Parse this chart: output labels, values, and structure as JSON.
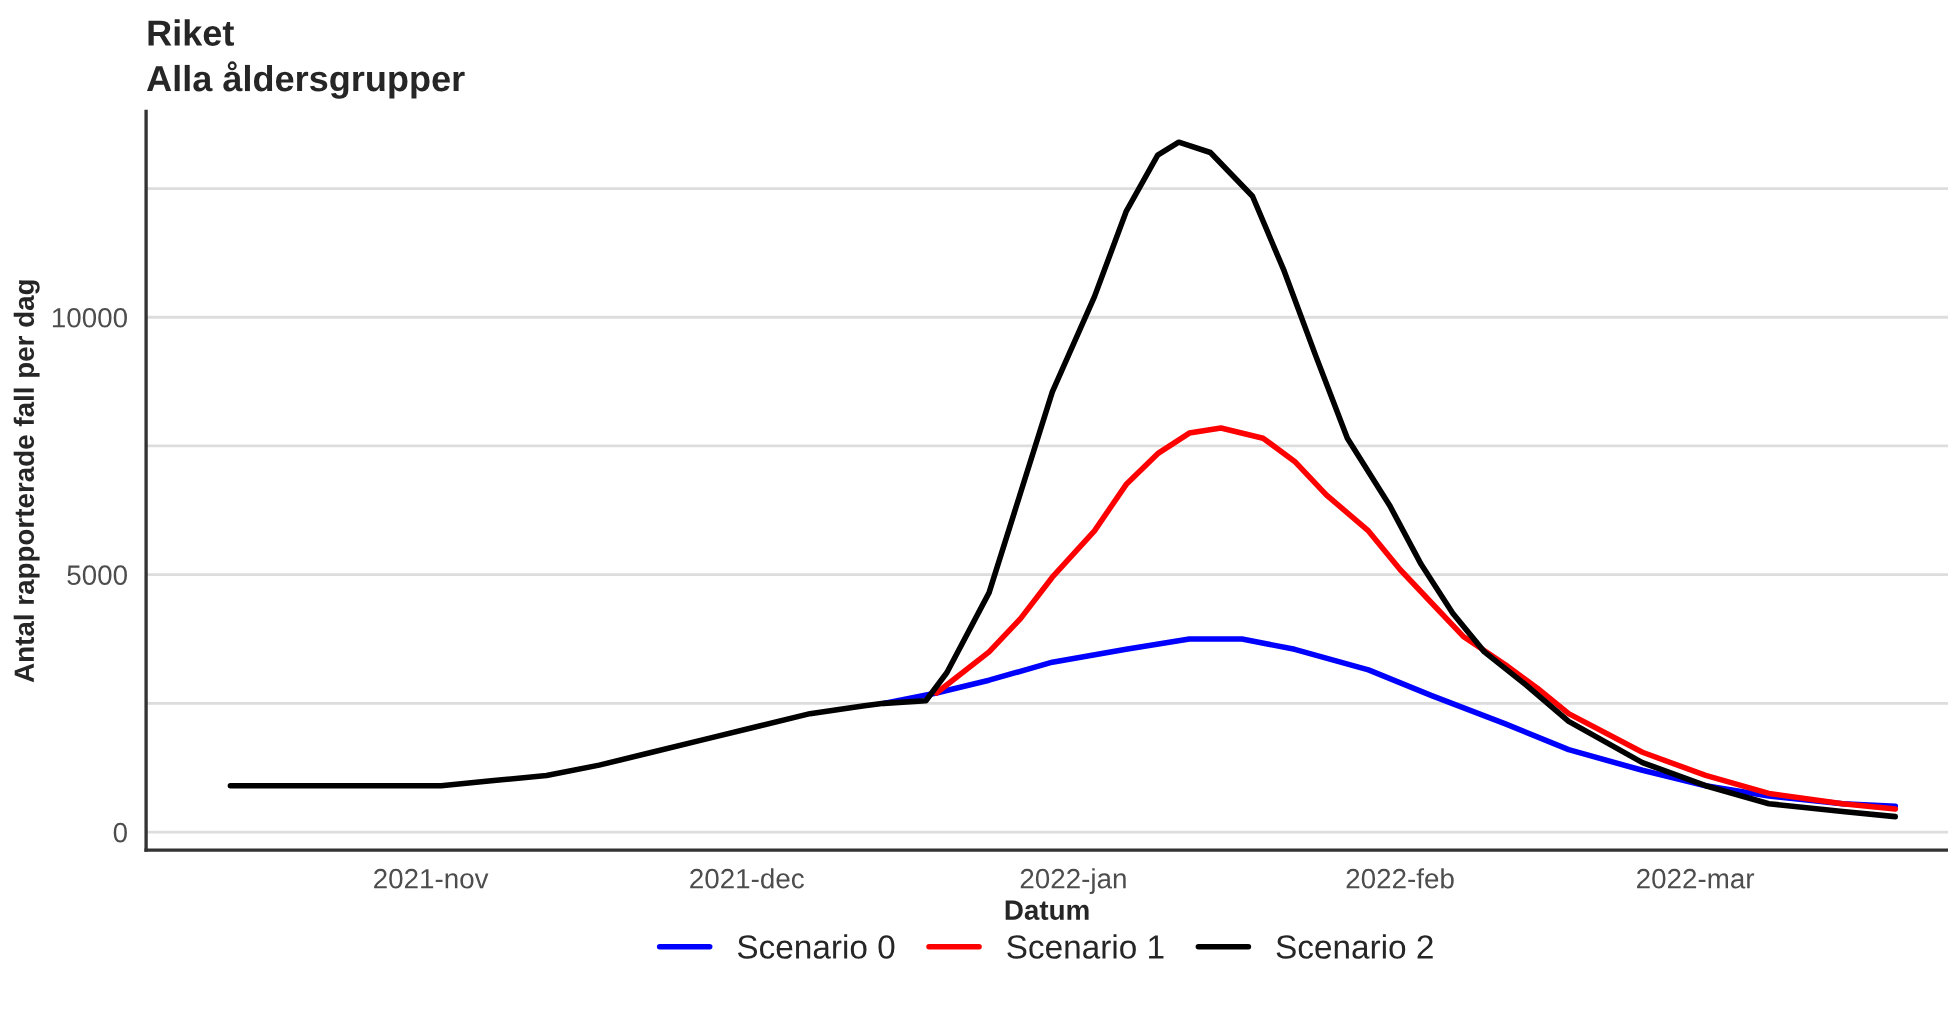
{
  "chart_data": {
    "type": "line",
    "title": "Riket",
    "subtitle": "Alla åldersgrupper",
    "xlabel": "Datum",
    "ylabel": "Antal rapporterade fall per dag",
    "xlim": [
      "2021-10-05",
      "2022-03-25"
    ],
    "xticks": [
      {
        "value": "2021-11-01",
        "label": "2021-nov"
      },
      {
        "value": "2021-12-01",
        "label": "2021-dec"
      },
      {
        "value": "2022-01-01",
        "label": "2022-jan"
      },
      {
        "value": "2022-02-01",
        "label": "2022-feb"
      },
      {
        "value": "2022-03-01",
        "label": "2022-mar"
      }
    ],
    "ylim": [
      -350,
      14000
    ],
    "yticks": [
      0,
      {
        "value": 2500,
        "label": null
      },
      5000,
      {
        "value": 7500,
        "label": null
      },
      10000,
      {
        "value": 12500,
        "label": null
      }
    ],
    "grid": "y",
    "legend": "bottom",
    "line_style": "solid",
    "marker": "none",
    "series": [
      {
        "name": "Scenario 0",
        "color": "#0000ff",
        "x": [
          "2021-12-14",
          "2021-12-19",
          "2021-12-24",
          "2021-12-30",
          "2022-01-06",
          "2022-01-12",
          "2022-01-17",
          "2022-01-22",
          "2022-01-29",
          "2022-02-04",
          "2022-02-11",
          "2022-02-17",
          "2022-02-24",
          "2022-03-02",
          "2022-03-08",
          "2022-03-15",
          "2022-03-20"
        ],
        "values": [
          2500,
          2700,
          2950,
          3300,
          3550,
          3750,
          3750,
          3550,
          3150,
          2650,
          2100,
          1600,
          1200,
          900,
          700,
          550,
          500
        ]
      },
      {
        "name": "Scenario 1",
        "color": "#ff0000",
        "x": [
          "2021-12-19",
          "2021-12-24",
          "2021-12-27",
          "2021-12-30",
          "2022-01-03",
          "2022-01-06",
          "2022-01-09",
          "2022-01-12",
          "2022-01-15",
          "2022-01-19",
          "2022-01-22",
          "2022-01-25",
          "2022-01-29",
          "2022-02-01",
          "2022-02-04",
          "2022-02-07",
          "2022-02-11",
          "2022-02-14",
          "2022-02-17",
          "2022-02-24",
          "2022-03-02",
          "2022-03-08",
          "2022-03-15",
          "2022-03-20"
        ],
        "values": [
          2700,
          3500,
          4150,
          4950,
          5850,
          6750,
          7350,
          7750,
          7850,
          7650,
          7200,
          6550,
          5850,
          5100,
          4450,
          3800,
          3250,
          2800,
          2300,
          1550,
          1100,
          750,
          550,
          450
        ]
      },
      {
        "name": "Scenario 2",
        "color": "#000000",
        "x": [
          "2021-10-13",
          "2021-10-18",
          "2021-10-23",
          "2021-10-28",
          "2021-11-02",
          "2021-11-07",
          "2021-11-12",
          "2021-11-17",
          "2021-11-22",
          "2021-11-27",
          "2021-12-02",
          "2021-12-07",
          "2021-12-12",
          "2021-12-14",
          "2021-12-18",
          "2021-12-20",
          "2021-12-24",
          "2021-12-27",
          "2021-12-30",
          "2022-01-03",
          "2022-01-06",
          "2022-01-09",
          "2022-01-11",
          "2022-01-14",
          "2022-01-18",
          "2022-01-21",
          "2022-01-24",
          "2022-01-27",
          "2022-01-31",
          "2022-02-03",
          "2022-02-06",
          "2022-02-09",
          "2022-02-13",
          "2022-02-17",
          "2022-02-24",
          "2022-03-02",
          "2022-03-08",
          "2022-03-15",
          "2022-03-20"
        ],
        "values": [
          900,
          900,
          900,
          900,
          900,
          1000,
          1100,
          1300,
          1550,
          1800,
          2050,
          2300,
          2450,
          2500,
          2550,
          3100,
          4650,
          6600,
          8550,
          10400,
          12050,
          13150,
          13400,
          13200,
          12350,
          10900,
          9250,
          7650,
          6350,
          5200,
          4250,
          3500,
          2850,
          2150,
          1350,
          900,
          550,
          400,
          300
        ]
      }
    ]
  }
}
